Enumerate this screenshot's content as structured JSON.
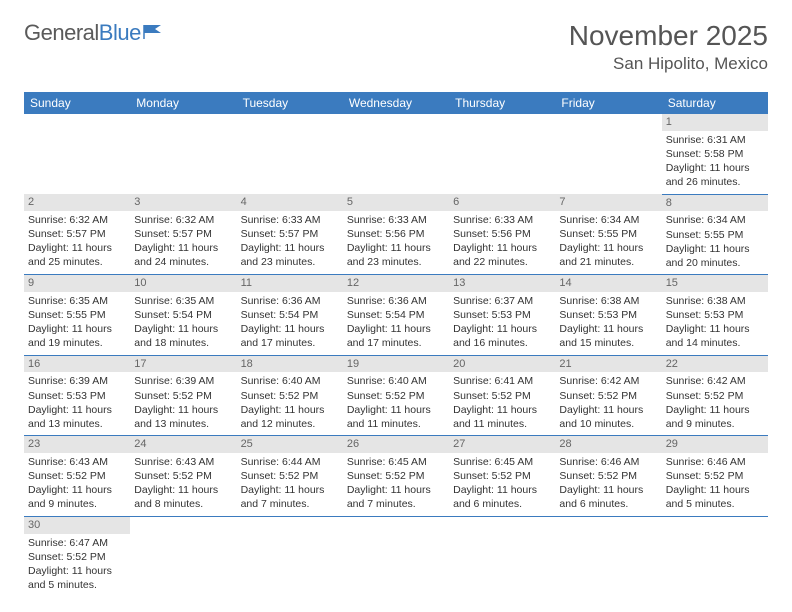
{
  "brand": {
    "part1": "General",
    "part2": "Blue"
  },
  "title": "November 2025",
  "location": "San Hipolito, Mexico",
  "weekday_header_bg": "#3b7bbf",
  "weekday_header_fg": "#ffffff",
  "daynum_bg": "#e5e5e5",
  "cell_divider_color": "#3b7bbf",
  "weekdays": [
    "Sunday",
    "Monday",
    "Tuesday",
    "Wednesday",
    "Thursday",
    "Friday",
    "Saturday"
  ],
  "weeks": [
    [
      null,
      null,
      null,
      null,
      null,
      null,
      {
        "n": "1",
        "sr": "Sunrise: 6:31 AM",
        "ss": "Sunset: 5:58 PM",
        "dl": "Daylight: 11 hours and 26 minutes."
      }
    ],
    [
      {
        "n": "2",
        "sr": "Sunrise: 6:32 AM",
        "ss": "Sunset: 5:57 PM",
        "dl": "Daylight: 11 hours and 25 minutes."
      },
      {
        "n": "3",
        "sr": "Sunrise: 6:32 AM",
        "ss": "Sunset: 5:57 PM",
        "dl": "Daylight: 11 hours and 24 minutes."
      },
      {
        "n": "4",
        "sr": "Sunrise: 6:33 AM",
        "ss": "Sunset: 5:57 PM",
        "dl": "Daylight: 11 hours and 23 minutes."
      },
      {
        "n": "5",
        "sr": "Sunrise: 6:33 AM",
        "ss": "Sunset: 5:56 PM",
        "dl": "Daylight: 11 hours and 23 minutes."
      },
      {
        "n": "6",
        "sr": "Sunrise: 6:33 AM",
        "ss": "Sunset: 5:56 PM",
        "dl": "Daylight: 11 hours and 22 minutes."
      },
      {
        "n": "7",
        "sr": "Sunrise: 6:34 AM",
        "ss": "Sunset: 5:55 PM",
        "dl": "Daylight: 11 hours and 21 minutes."
      },
      {
        "n": "8",
        "sr": "Sunrise: 6:34 AM",
        "ss": "Sunset: 5:55 PM",
        "dl": "Daylight: 11 hours and 20 minutes."
      }
    ],
    [
      {
        "n": "9",
        "sr": "Sunrise: 6:35 AM",
        "ss": "Sunset: 5:55 PM",
        "dl": "Daylight: 11 hours and 19 minutes."
      },
      {
        "n": "10",
        "sr": "Sunrise: 6:35 AM",
        "ss": "Sunset: 5:54 PM",
        "dl": "Daylight: 11 hours and 18 minutes."
      },
      {
        "n": "11",
        "sr": "Sunrise: 6:36 AM",
        "ss": "Sunset: 5:54 PM",
        "dl": "Daylight: 11 hours and 17 minutes."
      },
      {
        "n": "12",
        "sr": "Sunrise: 6:36 AM",
        "ss": "Sunset: 5:54 PM",
        "dl": "Daylight: 11 hours and 17 minutes."
      },
      {
        "n": "13",
        "sr": "Sunrise: 6:37 AM",
        "ss": "Sunset: 5:53 PM",
        "dl": "Daylight: 11 hours and 16 minutes."
      },
      {
        "n": "14",
        "sr": "Sunrise: 6:38 AM",
        "ss": "Sunset: 5:53 PM",
        "dl": "Daylight: 11 hours and 15 minutes."
      },
      {
        "n": "15",
        "sr": "Sunrise: 6:38 AM",
        "ss": "Sunset: 5:53 PM",
        "dl": "Daylight: 11 hours and 14 minutes."
      }
    ],
    [
      {
        "n": "16",
        "sr": "Sunrise: 6:39 AM",
        "ss": "Sunset: 5:53 PM",
        "dl": "Daylight: 11 hours and 13 minutes."
      },
      {
        "n": "17",
        "sr": "Sunrise: 6:39 AM",
        "ss": "Sunset: 5:52 PM",
        "dl": "Daylight: 11 hours and 13 minutes."
      },
      {
        "n": "18",
        "sr": "Sunrise: 6:40 AM",
        "ss": "Sunset: 5:52 PM",
        "dl": "Daylight: 11 hours and 12 minutes."
      },
      {
        "n": "19",
        "sr": "Sunrise: 6:40 AM",
        "ss": "Sunset: 5:52 PM",
        "dl": "Daylight: 11 hours and 11 minutes."
      },
      {
        "n": "20",
        "sr": "Sunrise: 6:41 AM",
        "ss": "Sunset: 5:52 PM",
        "dl": "Daylight: 11 hours and 11 minutes."
      },
      {
        "n": "21",
        "sr": "Sunrise: 6:42 AM",
        "ss": "Sunset: 5:52 PM",
        "dl": "Daylight: 11 hours and 10 minutes."
      },
      {
        "n": "22",
        "sr": "Sunrise: 6:42 AM",
        "ss": "Sunset: 5:52 PM",
        "dl": "Daylight: 11 hours and 9 minutes."
      }
    ],
    [
      {
        "n": "23",
        "sr": "Sunrise: 6:43 AM",
        "ss": "Sunset: 5:52 PM",
        "dl": "Daylight: 11 hours and 9 minutes."
      },
      {
        "n": "24",
        "sr": "Sunrise: 6:43 AM",
        "ss": "Sunset: 5:52 PM",
        "dl": "Daylight: 11 hours and 8 minutes."
      },
      {
        "n": "25",
        "sr": "Sunrise: 6:44 AM",
        "ss": "Sunset: 5:52 PM",
        "dl": "Daylight: 11 hours and 7 minutes."
      },
      {
        "n": "26",
        "sr": "Sunrise: 6:45 AM",
        "ss": "Sunset: 5:52 PM",
        "dl": "Daylight: 11 hours and 7 minutes."
      },
      {
        "n": "27",
        "sr": "Sunrise: 6:45 AM",
        "ss": "Sunset: 5:52 PM",
        "dl": "Daylight: 11 hours and 6 minutes."
      },
      {
        "n": "28",
        "sr": "Sunrise: 6:46 AM",
        "ss": "Sunset: 5:52 PM",
        "dl": "Daylight: 11 hours and 6 minutes."
      },
      {
        "n": "29",
        "sr": "Sunrise: 6:46 AM",
        "ss": "Sunset: 5:52 PM",
        "dl": "Daylight: 11 hours and 5 minutes."
      }
    ],
    [
      {
        "n": "30",
        "sr": "Sunrise: 6:47 AM",
        "ss": "Sunset: 5:52 PM",
        "dl": "Daylight: 11 hours and 5 minutes."
      },
      null,
      null,
      null,
      null,
      null,
      null
    ]
  ]
}
